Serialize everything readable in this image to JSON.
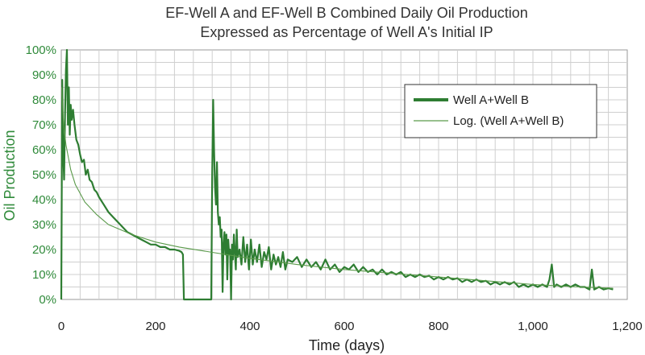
{
  "chart_data": {
    "type": "line",
    "title": "EF-Well A and EF-Well B Combined Daily Oil Production",
    "subtitle": "Expressed as Percentage of Well A's Initial IP",
    "xlabel": "Time (days)",
    "ylabel": "Oil Production",
    "xlim": [
      0,
      1200
    ],
    "ylim": [
      0,
      100
    ],
    "x_ticks": [
      "0",
      "200",
      "400",
      "600",
      "800",
      "1,000",
      "1,200"
    ],
    "y_ticks": [
      "0%",
      "10%",
      "20%",
      "30%",
      "40%",
      "50%",
      "60%",
      "70%",
      "80%",
      "90%",
      "100%"
    ],
    "grid": true,
    "legend_position": "top-right",
    "series": [
      {
        "name": "Well A+Well B",
        "color": "#2e7d32",
        "style": "thick-line",
        "points": [
          [
            0,
            0
          ],
          [
            2,
            88
          ],
          [
            4,
            60
          ],
          [
            6,
            48
          ],
          [
            8,
            75
          ],
          [
            10,
            92
          ],
          [
            12,
            100
          ],
          [
            14,
            70
          ],
          [
            16,
            85
          ],
          [
            18,
            66
          ],
          [
            20,
            78
          ],
          [
            22,
            72
          ],
          [
            25,
            76
          ],
          [
            28,
            70
          ],
          [
            32,
            64
          ],
          [
            36,
            62
          ],
          [
            40,
            58
          ],
          [
            44,
            55
          ],
          [
            48,
            56
          ],
          [
            52,
            50
          ],
          [
            56,
            52
          ],
          [
            60,
            48
          ],
          [
            65,
            47
          ],
          [
            70,
            44
          ],
          [
            75,
            43
          ],
          [
            80,
            41
          ],
          [
            90,
            38
          ],
          [
            100,
            35
          ],
          [
            110,
            33
          ],
          [
            120,
            31
          ],
          [
            130,
            29
          ],
          [
            140,
            27
          ],
          [
            150,
            26
          ],
          [
            160,
            25
          ],
          [
            170,
            24
          ],
          [
            180,
            23
          ],
          [
            190,
            22
          ],
          [
            200,
            22
          ],
          [
            210,
            21
          ],
          [
            220,
            21
          ],
          [
            230,
            20
          ],
          [
            240,
            20
          ],
          [
            250,
            19.5
          ],
          [
            255,
            19
          ],
          [
            258,
            18
          ],
          [
            260,
            0
          ],
          [
            270,
            0
          ],
          [
            280,
            0
          ],
          [
            290,
            0
          ],
          [
            300,
            0
          ],
          [
            310,
            0
          ],
          [
            318,
            0
          ],
          [
            320,
            50
          ],
          [
            322,
            80
          ],
          [
            324,
            60
          ],
          [
            326,
            45
          ],
          [
            328,
            38
          ],
          [
            330,
            55
          ],
          [
            332,
            35
          ],
          [
            334,
            30
          ],
          [
            336,
            33
          ],
          [
            338,
            25
          ],
          [
            340,
            28
          ],
          [
            342,
            3
          ],
          [
            344,
            22
          ],
          [
            346,
            27
          ],
          [
            348,
            18
          ],
          [
            350,
            26
          ],
          [
            352,
            8
          ],
          [
            354,
            24
          ],
          [
            356,
            18
          ],
          [
            358,
            20
          ],
          [
            360,
            0
          ],
          [
            362,
            22
          ],
          [
            364,
            16
          ],
          [
            366,
            26
          ],
          [
            368,
            19
          ],
          [
            370,
            12
          ],
          [
            372,
            28
          ],
          [
            374,
            17
          ],
          [
            378,
            20
          ],
          [
            382,
            14
          ],
          [
            386,
            25
          ],
          [
            390,
            15
          ],
          [
            394,
            22
          ],
          [
            398,
            12
          ],
          [
            402,
            24
          ],
          [
            406,
            14
          ],
          [
            410,
            20
          ],
          [
            415,
            15
          ],
          [
            420,
            22
          ],
          [
            425,
            13
          ],
          [
            430,
            19
          ],
          [
            435,
            16
          ],
          [
            440,
            21
          ],
          [
            445,
            12
          ],
          [
            450,
            18
          ],
          [
            455,
            14
          ],
          [
            460,
            17
          ],
          [
            465,
            13
          ],
          [
            470,
            19
          ],
          [
            475,
            12
          ],
          [
            480,
            16
          ],
          [
            490,
            15
          ],
          [
            500,
            17
          ],
          [
            510,
            13
          ],
          [
            520,
            16
          ],
          [
            530,
            13
          ],
          [
            540,
            15
          ],
          [
            550,
            12
          ],
          [
            560,
            16
          ],
          [
            570,
            12
          ],
          [
            580,
            14
          ],
          [
            590,
            11
          ],
          [
            600,
            13
          ],
          [
            610,
            12
          ],
          [
            620,
            14
          ],
          [
            630,
            11
          ],
          [
            640,
            13
          ],
          [
            650,
            11
          ],
          [
            660,
            12
          ],
          [
            670,
            10
          ],
          [
            680,
            12
          ],
          [
            690,
            10
          ],
          [
            700,
            11
          ],
          [
            710,
            10
          ],
          [
            720,
            11
          ],
          [
            730,
            9
          ],
          [
            740,
            10
          ],
          [
            750,
            9
          ],
          [
            760,
            10
          ],
          [
            770,
            9
          ],
          [
            780,
            9.5
          ],
          [
            790,
            8
          ],
          [
            800,
            9
          ],
          [
            810,
            8
          ],
          [
            820,
            9
          ],
          [
            830,
            8
          ],
          [
            840,
            8.5
          ],
          [
            850,
            7
          ],
          [
            860,
            8
          ],
          [
            870,
            7
          ],
          [
            880,
            8
          ],
          [
            890,
            7
          ],
          [
            900,
            7.5
          ],
          [
            910,
            6
          ],
          [
            920,
            7
          ],
          [
            930,
            6
          ],
          [
            940,
            7
          ],
          [
            950,
            6
          ],
          [
            960,
            7
          ],
          [
            970,
            5
          ],
          [
            980,
            6
          ],
          [
            990,
            5
          ],
          [
            1000,
            6
          ],
          [
            1010,
            5
          ],
          [
            1020,
            6
          ],
          [
            1030,
            5
          ],
          [
            1035,
            8
          ],
          [
            1040,
            14
          ],
          [
            1045,
            5
          ],
          [
            1050,
            6
          ],
          [
            1060,
            5
          ],
          [
            1070,
            6
          ],
          [
            1080,
            5
          ],
          [
            1090,
            6
          ],
          [
            1100,
            5
          ],
          [
            1110,
            5
          ],
          [
            1120,
            4
          ],
          [
            1125,
            12
          ],
          [
            1130,
            4
          ],
          [
            1140,
            5
          ],
          [
            1150,
            4
          ],
          [
            1160,
            4.5
          ],
          [
            1170,
            4
          ]
        ]
      },
      {
        "name": "Log. (Well A+Well B)",
        "color": "#5a9a4a",
        "style": "thin-line",
        "points": [
          [
            1,
            85
          ],
          [
            2,
            80
          ],
          [
            5,
            70
          ],
          [
            10,
            62
          ],
          [
            20,
            52
          ],
          [
            30,
            46
          ],
          [
            50,
            39
          ],
          [
            75,
            34
          ],
          [
            100,
            30
          ],
          [
            150,
            26
          ],
          [
            200,
            23
          ],
          [
            250,
            21
          ],
          [
            300,
            19.5
          ],
          [
            400,
            16.5
          ],
          [
            500,
            14
          ],
          [
            600,
            12
          ],
          [
            700,
            10.5
          ],
          [
            800,
            9
          ],
          [
            900,
            7.5
          ],
          [
            1000,
            6
          ],
          [
            1100,
            5
          ],
          [
            1170,
            4.5
          ]
        ]
      }
    ]
  }
}
